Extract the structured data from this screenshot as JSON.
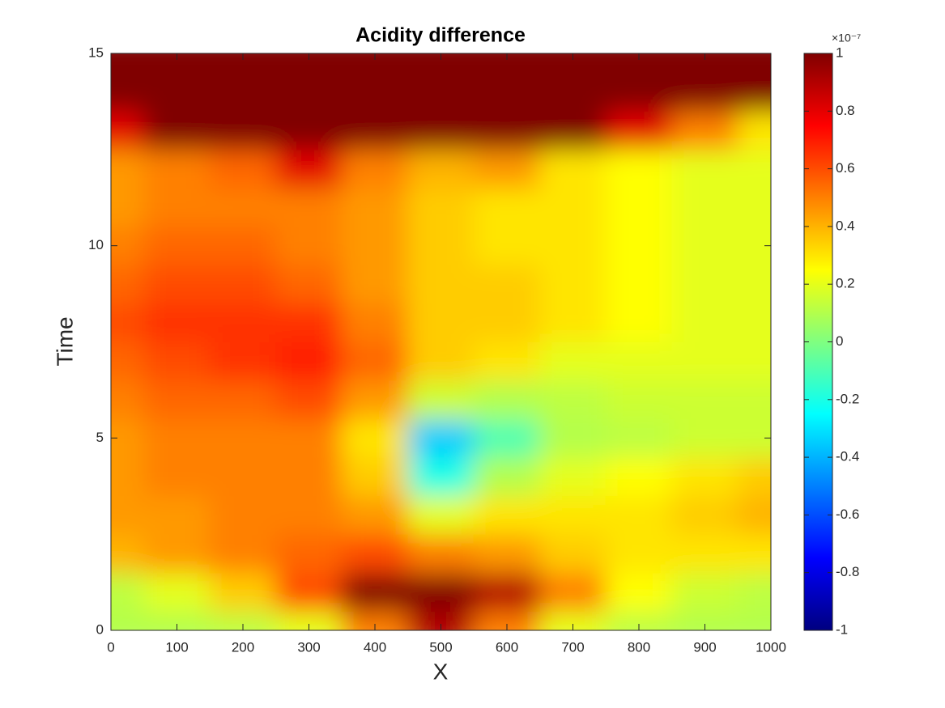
{
  "chart_data": {
    "type": "heatmap",
    "title": "Acidity difference",
    "xlabel": "X",
    "ylabel": "Time",
    "x": [
      0,
      100,
      200,
      300,
      400,
      500,
      600,
      700,
      800,
      900,
      1000
    ],
    "y": [
      0,
      1,
      2,
      3,
      4,
      5,
      6,
      7,
      8,
      9,
      10,
      11,
      12,
      13,
      14,
      15
    ],
    "z": [
      [
        0.1,
        0.1,
        0.12,
        0.2,
        0.5,
        0.9,
        0.5,
        0.2,
        0.12,
        0.1,
        0.1
      ],
      [
        0.12,
        0.2,
        0.35,
        0.6,
        1.0,
        1.0,
        0.9,
        0.5,
        0.25,
        0.15,
        0.12
      ],
      [
        0.4,
        0.45,
        0.5,
        0.55,
        0.6,
        0.5,
        0.45,
        0.35,
        0.3,
        0.3,
        0.3
      ],
      [
        0.45,
        0.45,
        0.5,
        0.5,
        0.45,
        0.2,
        0.3,
        0.3,
        0.3,
        0.35,
        0.4
      ],
      [
        0.45,
        0.5,
        0.5,
        0.5,
        0.35,
        -0.2,
        0.1,
        0.2,
        0.25,
        0.3,
        0.35
      ],
      [
        0.45,
        0.5,
        0.5,
        0.5,
        0.3,
        -0.35,
        -0.1,
        0.1,
        0.12,
        0.15,
        0.15
      ],
      [
        0.5,
        0.55,
        0.55,
        0.6,
        0.45,
        0.15,
        0.1,
        0.12,
        0.15,
        0.15,
        0.15
      ],
      [
        0.55,
        0.6,
        0.65,
        0.7,
        0.55,
        0.35,
        0.3,
        0.2,
        0.2,
        0.2,
        0.2
      ],
      [
        0.6,
        0.65,
        0.65,
        0.65,
        0.5,
        0.35,
        0.35,
        0.3,
        0.25,
        0.2,
        0.2
      ],
      [
        0.55,
        0.6,
        0.6,
        0.55,
        0.45,
        0.35,
        0.35,
        0.3,
        0.25,
        0.2,
        0.2
      ],
      [
        0.5,
        0.55,
        0.55,
        0.5,
        0.45,
        0.35,
        0.3,
        0.3,
        0.25,
        0.2,
        0.2
      ],
      [
        0.45,
        0.5,
        0.5,
        0.5,
        0.45,
        0.35,
        0.3,
        0.3,
        0.25,
        0.2,
        0.2
      ],
      [
        0.45,
        0.5,
        0.55,
        0.8,
        0.5,
        0.4,
        0.45,
        0.3,
        0.25,
        0.2,
        0.2
      ],
      [
        0.8,
        1,
        1,
        1,
        1,
        1,
        1,
        1,
        0.8,
        0.5,
        0.3
      ],
      [
        1.2,
        1.2,
        1.2,
        1.2,
        1.2,
        1.2,
        1.2,
        1.2,
        1.2,
        1.2,
        1.2
      ],
      [
        1.2,
        1.2,
        1.2,
        1.2,
        1.2,
        1.2,
        1.2,
        1.2,
        1.2,
        1.2,
        1.2
      ]
    ],
    "xlim": [
      0,
      1000
    ],
    "ylim": [
      0,
      15
    ],
    "xticks": [
      0,
      100,
      200,
      300,
      400,
      500,
      600,
      700,
      800,
      900,
      1000
    ],
    "yticks": [
      0,
      5,
      10,
      15
    ],
    "colormap": "jet",
    "clim": [
      -1,
      1
    ],
    "colorbar_ticks": [
      -1,
      -0.8,
      -0.6,
      -0.4,
      -0.2,
      0,
      0.2,
      0.4,
      0.6,
      0.8,
      1
    ],
    "colorbar_exponent": "×10⁻⁷"
  }
}
